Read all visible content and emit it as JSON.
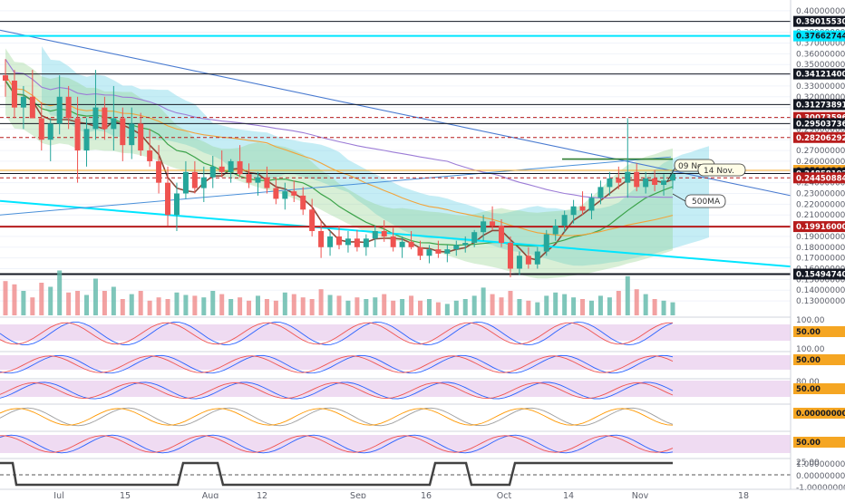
{
  "chart_data": {
    "type": "candlestick",
    "price_axis": {
      "ticks": [
        "0.40000000",
        "0.39000000",
        "0.38000000",
        "0.37000000",
        "0.36000000",
        "0.35000000",
        "0.34000000",
        "0.33000000",
        "0.32000000",
        "0.31000000",
        "0.30000000",
        "0.29000000",
        "0.28000000",
        "0.27000000",
        "0.26000000",
        "0.25000000",
        "0.24000000",
        "0.23000000",
        "0.22000000",
        "0.21000000",
        "0.20000000",
        "0.19000000",
        "0.18000000",
        "0.17000000",
        "0.16000000",
        "0.15000000",
        "0.14000000",
        "0.13000000"
      ],
      "range": [
        0.125,
        0.405
      ]
    },
    "price_tags": [
      {
        "value": 0.3901553,
        "label": "0.39015530",
        "bg": "#131722",
        "fg": "#ffffff"
      },
      {
        "value": 0.37662744,
        "label": "0.37662744",
        "bg": "#00e5ff",
        "fg": "#131722"
      },
      {
        "value": 0.341214,
        "label": "0.34121400",
        "bg": "#131722",
        "fg": "#ffffff"
      },
      {
        "value": 0.31273891,
        "label": "0.31273891",
        "bg": "#131722",
        "fg": "#ffffff"
      },
      {
        "value": 0.30073596,
        "label": "0.30073596",
        "bg": "#b71c1c",
        "fg": "#ffffff"
      },
      {
        "value": 0.29503736,
        "label": "0.29503736",
        "bg": "#131722",
        "fg": "#ffffff"
      },
      {
        "value": 0.28206292,
        "label": "0.28206292",
        "bg": "#b71c1c",
        "fg": "#ffffff"
      },
      {
        "value": 0.25146288,
        "label": "0.25146288",
        "bg": "#f5a623",
        "fg": "#131722"
      },
      {
        "value": 0.24858192,
        "label": "0.24858192",
        "bg": "#131722",
        "fg": "#ffffff"
      },
      {
        "value": 0.24450884,
        "label": "0.24450884",
        "bg": "#b71c1c",
        "fg": "#ffffff"
      },
      {
        "value": 0.19916,
        "label": "0.19916000",
        "bg": "#b71c1c",
        "fg": "#ffffff"
      },
      {
        "value": 0.1549474,
        "label": "0.15494740",
        "bg": "#131722",
        "fg": "#ffffff"
      }
    ],
    "x_axis_labels": [
      "Jul",
      "15",
      "Aug",
      "12",
      "Sep",
      "16",
      "Oct",
      "14",
      "Nov",
      "18"
    ],
    "annotations": [
      {
        "text": "09 Nov."
      },
      {
        "text": "14 Nov."
      },
      {
        "text": "500MA"
      }
    ],
    "candles_ohlc": [
      [
        0.34,
        0.355,
        0.32,
        0.335
      ],
      [
        0.335,
        0.345,
        0.3,
        0.31
      ],
      [
        0.31,
        0.33,
        0.29,
        0.32
      ],
      [
        0.32,
        0.345,
        0.305,
        0.3
      ],
      [
        0.3,
        0.315,
        0.27,
        0.28
      ],
      [
        0.28,
        0.3,
        0.26,
        0.295
      ],
      [
        0.295,
        0.34,
        0.285,
        0.32
      ],
      [
        0.32,
        0.33,
        0.29,
        0.3
      ],
      [
        0.3,
        0.32,
        0.24,
        0.27
      ],
      [
        0.27,
        0.3,
        0.255,
        0.29
      ],
      [
        0.29,
        0.345,
        0.28,
        0.31
      ],
      [
        0.31,
        0.32,
        0.28,
        0.29
      ],
      [
        0.29,
        0.33,
        0.27,
        0.3
      ],
      [
        0.3,
        0.31,
        0.26,
        0.275
      ],
      [
        0.275,
        0.31,
        0.262,
        0.295
      ],
      [
        0.295,
        0.305,
        0.265,
        0.27
      ],
      [
        0.27,
        0.29,
        0.255,
        0.26
      ],
      [
        0.26,
        0.275,
        0.23,
        0.24
      ],
      [
        0.24,
        0.255,
        0.2,
        0.21
      ],
      [
        0.21,
        0.24,
        0.195,
        0.23
      ],
      [
        0.23,
        0.26,
        0.225,
        0.25
      ],
      [
        0.25,
        0.26,
        0.23,
        0.235
      ],
      [
        0.235,
        0.255,
        0.222,
        0.245
      ],
      [
        0.245,
        0.265,
        0.235,
        0.255
      ],
      [
        0.255,
        0.27,
        0.245,
        0.25
      ],
      [
        0.25,
        0.262,
        0.24,
        0.26
      ],
      [
        0.26,
        0.275,
        0.245,
        0.248
      ],
      [
        0.248,
        0.258,
        0.235,
        0.24
      ],
      [
        0.24,
        0.25,
        0.228,
        0.245
      ],
      [
        0.245,
        0.255,
        0.23,
        0.235
      ],
      [
        0.235,
        0.245,
        0.22,
        0.225
      ],
      [
        0.225,
        0.24,
        0.215,
        0.232
      ],
      [
        0.232,
        0.242,
        0.222,
        0.228
      ],
      [
        0.228,
        0.236,
        0.21,
        0.215
      ],
      [
        0.215,
        0.225,
        0.19,
        0.195
      ],
      [
        0.195,
        0.205,
        0.17,
        0.18
      ],
      [
        0.18,
        0.195,
        0.172,
        0.19
      ],
      [
        0.19,
        0.2,
        0.178,
        0.182
      ],
      [
        0.182,
        0.195,
        0.175,
        0.188
      ],
      [
        0.188,
        0.196,
        0.176,
        0.18
      ],
      [
        0.18,
        0.192,
        0.172,
        0.188
      ],
      [
        0.188,
        0.2,
        0.18,
        0.195
      ],
      [
        0.195,
        0.205,
        0.185,
        0.19
      ],
      [
        0.19,
        0.198,
        0.176,
        0.18
      ],
      [
        0.18,
        0.19,
        0.17,
        0.185
      ],
      [
        0.185,
        0.195,
        0.178,
        0.18
      ],
      [
        0.18,
        0.186,
        0.168,
        0.172
      ],
      [
        0.172,
        0.182,
        0.165,
        0.178
      ],
      [
        0.178,
        0.186,
        0.17,
        0.174
      ],
      [
        0.174,
        0.182,
        0.166,
        0.178
      ],
      [
        0.178,
        0.186,
        0.172,
        0.182
      ],
      [
        0.182,
        0.19,
        0.175,
        0.184
      ],
      [
        0.184,
        0.196,
        0.18,
        0.194
      ],
      [
        0.194,
        0.21,
        0.186,
        0.204
      ],
      [
        0.204,
        0.218,
        0.196,
        0.2
      ],
      [
        0.2,
        0.206,
        0.18,
        0.184
      ],
      [
        0.184,
        0.19,
        0.152,
        0.16
      ],
      [
        0.16,
        0.176,
        0.154,
        0.172
      ],
      [
        0.172,
        0.18,
        0.16,
        0.164
      ],
      [
        0.164,
        0.18,
        0.16,
        0.176
      ],
      [
        0.176,
        0.196,
        0.172,
        0.192
      ],
      [
        0.192,
        0.206,
        0.186,
        0.2
      ],
      [
        0.2,
        0.214,
        0.194,
        0.21
      ],
      [
        0.21,
        0.224,
        0.202,
        0.218
      ],
      [
        0.218,
        0.232,
        0.21,
        0.214
      ],
      [
        0.214,
        0.23,
        0.206,
        0.226
      ],
      [
        0.226,
        0.242,
        0.22,
        0.236
      ],
      [
        0.236,
        0.25,
        0.228,
        0.244
      ],
      [
        0.244,
        0.255,
        0.234,
        0.24
      ],
      [
        0.24,
        0.3,
        0.226,
        0.25
      ],
      [
        0.25,
        0.258,
        0.232,
        0.236
      ],
      [
        0.236,
        0.25,
        0.23,
        0.244
      ],
      [
        0.244,
        0.252,
        0.232,
        0.238
      ],
      [
        0.238,
        0.248,
        0.228,
        0.242
      ],
      [
        0.242,
        0.252,
        0.234,
        0.248
      ]
    ],
    "volumes": [
      42,
      38,
      30,
      22,
      40,
      35,
      55,
      28,
      30,
      25,
      45,
      30,
      35,
      20,
      26,
      30,
      18,
      22,
      20,
      28,
      25,
      24,
      22,
      30,
      26,
      20,
      22,
      18,
      24,
      20,
      18,
      28,
      26,
      22,
      20,
      32,
      25,
      24,
      18,
      22,
      20,
      22,
      26,
      18,
      20,
      24,
      18,
      20,
      16,
      14,
      18,
      20,
      24,
      34,
      26,
      22,
      30,
      20,
      18,
      16,
      24,
      28,
      26,
      22,
      20,
      18,
      24,
      22,
      30,
      48,
      32,
      26,
      20,
      18,
      16
    ]
  }
}
